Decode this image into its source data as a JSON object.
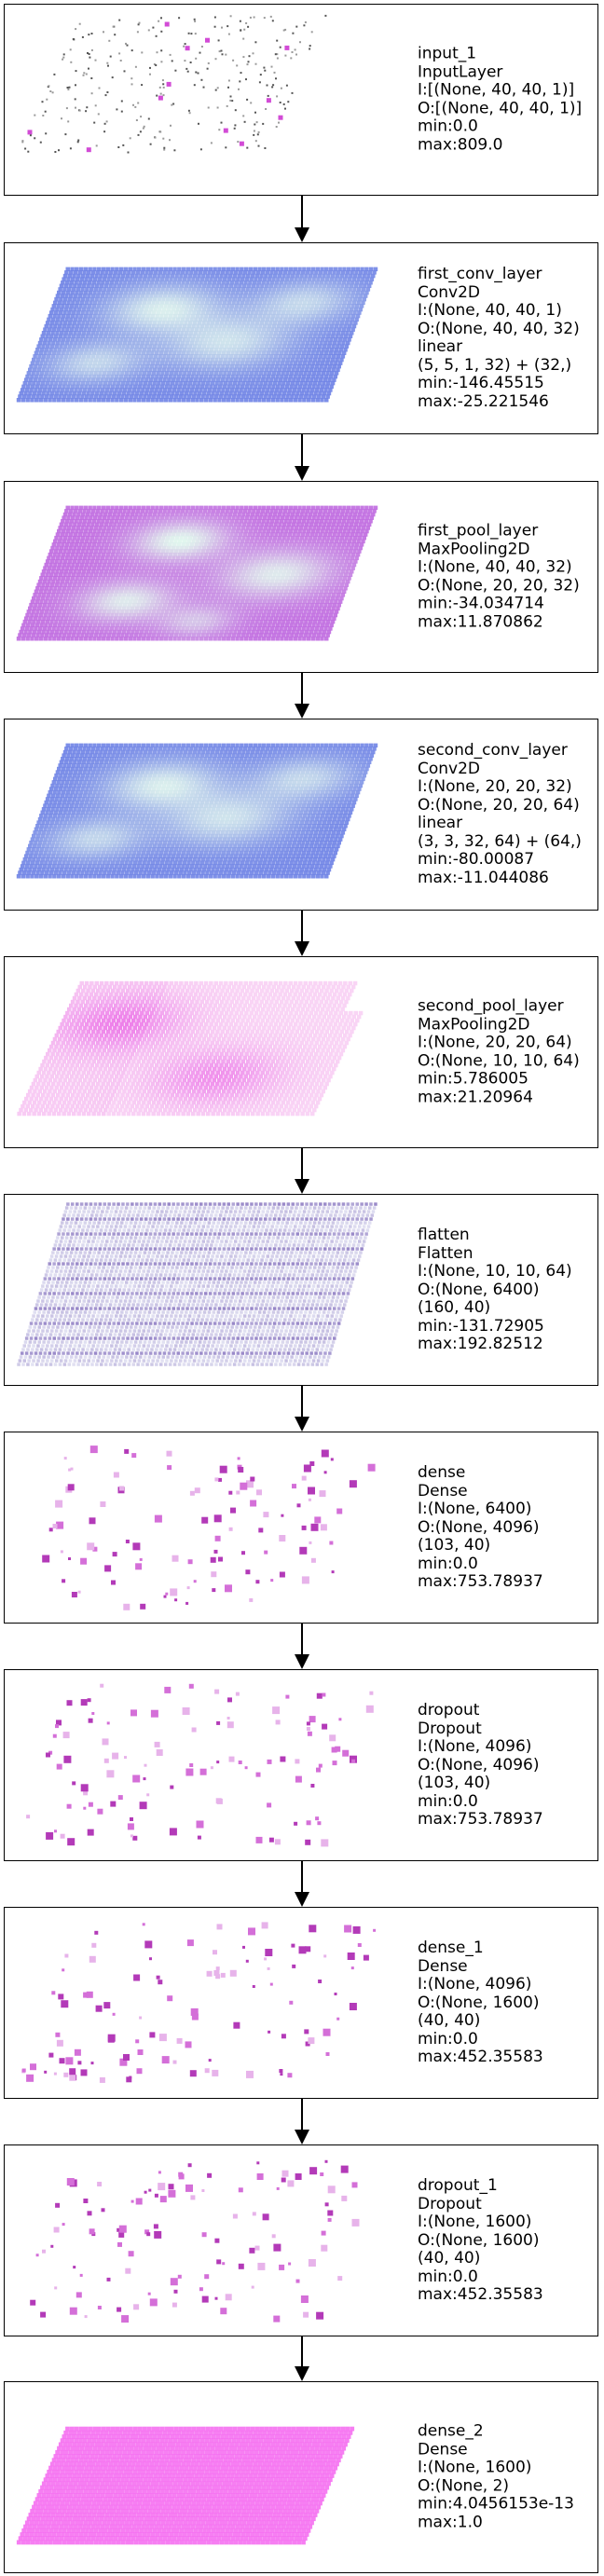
{
  "colors": {
    "conv": [
      "#6f83e6",
      "#dff5ec"
    ],
    "pool1": [
      "#c06be0",
      "#dff6ec"
    ],
    "pool2": [
      "#ea6ae6",
      "#f8d0f4"
    ],
    "flatten": [
      "#7a64b8",
      "#e8eaf6"
    ],
    "dense": "#cc55cc",
    "output": "#f569f0"
  },
  "layers": [
    {
      "kind": "input",
      "lines": [
        "input_1",
        "InputLayer",
        "I:[(None, 40, 40, 1)]",
        "O:[(None, 40, 40, 1)]",
        "min:0.0",
        "max:809.0"
      ]
    },
    {
      "kind": "conv",
      "lines": [
        "first_conv_layer",
        "Conv2D",
        "I:(None, 40, 40, 1)",
        "O:(None, 40, 40, 32)",
        "linear",
        "(5, 5, 1, 32) + (32,)",
        "min:-146.45515",
        "max:-25.221546"
      ]
    },
    {
      "kind": "pool1",
      "lines": [
        "first_pool_layer",
        "MaxPooling2D",
        "I:(None, 40, 40, 32)",
        "O:(None, 20, 20, 32)",
        "min:-34.034714",
        "max:11.870862"
      ]
    },
    {
      "kind": "conv",
      "lines": [
        "second_conv_layer",
        "Conv2D",
        "I:(None, 20, 20, 32)",
        "O:(None, 20, 20, 64)",
        "linear",
        "(3, 3, 32, 64) + (64,)",
        "min:-80.00087",
        "max:-11.044086"
      ]
    },
    {
      "kind": "pool2",
      "lines": [
        "second_pool_layer",
        "MaxPooling2D",
        "I:(None, 20, 20, 64)",
        "O:(None, 10, 10, 64)",
        "min:5.786005",
        "max:21.20964"
      ]
    },
    {
      "kind": "flatten",
      "lines": [
        "flatten",
        "Flatten",
        "I:(None, 10, 10, 64)",
        "O:(None, 6400)",
        "(160, 40)",
        "min:-131.72905",
        "max:192.82512"
      ]
    },
    {
      "kind": "dense",
      "lines": [
        "dense",
        "Dense",
        "I:(None, 6400)",
        "O:(None, 4096)",
        "(103, 40)",
        "min:0.0",
        "max:753.78937"
      ]
    },
    {
      "kind": "dense",
      "lines": [
        "dropout",
        "Dropout",
        "I:(None, 4096)",
        "O:(None, 4096)",
        "(103, 40)",
        "min:0.0",
        "max:753.78937"
      ]
    },
    {
      "kind": "dense",
      "lines": [
        "dense_1",
        "Dense",
        "I:(None, 4096)",
        "O:(None, 1600)",
        "(40, 40)",
        "min:0.0",
        "max:452.35583"
      ]
    },
    {
      "kind": "dense",
      "lines": [
        "dropout_1",
        "Dropout",
        "I:(None, 1600)",
        "O:(None, 1600)",
        "(40, 40)",
        "min:0.0",
        "max:452.35583"
      ]
    },
    {
      "kind": "output",
      "lines": [
        "dense_2",
        "Dense",
        "I:(None, 1600)",
        "O:(None, 2)",
        "min:4.0456153e-13",
        "max:1.0"
      ]
    }
  ]
}
